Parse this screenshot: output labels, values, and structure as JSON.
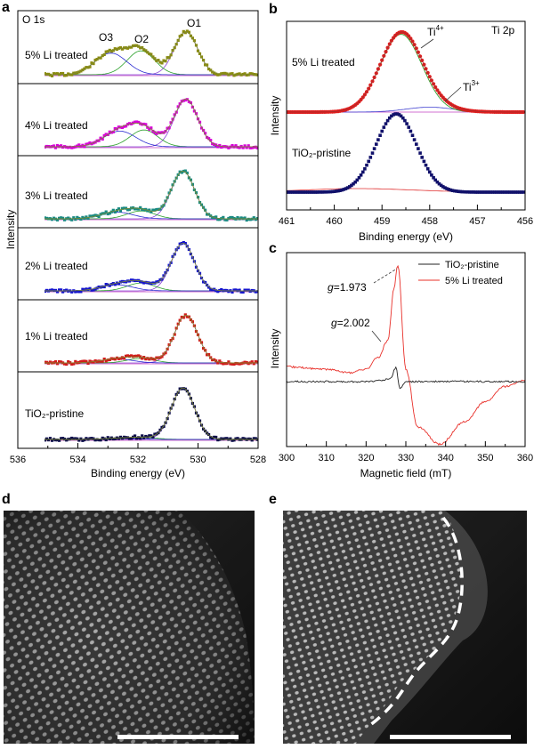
{
  "panels": {
    "a": {
      "letter": "a",
      "corner_label": "O 1s",
      "peak_labels": [
        "O3",
        "O2",
        "O1"
      ],
      "sample_labels": [
        "5% Li treated",
        "4% Li treated",
        "3% Li treated",
        "2% Li treated",
        "1% Li treated",
        "TiO₂-pristine"
      ],
      "xlabel": "Binding energy (eV)",
      "ylabel": "Intensity",
      "xticks": [
        "536",
        "534",
        "532",
        "530",
        "528"
      ]
    },
    "b": {
      "letter": "b",
      "corner_label": "Ti 2p",
      "peak_labels": [
        "Ti",
        "Ti"
      ],
      "peak_sup": [
        "4+",
        "3+"
      ],
      "sample_labels": [
        "5% Li treated",
        "TiO₂-pristine"
      ],
      "xlabel": "Binding energy (eV)",
      "ylabel": "Intensity",
      "xticks": [
        "461",
        "460",
        "459",
        "458",
        "457",
        "456"
      ]
    },
    "c": {
      "letter": "c",
      "legend": [
        "TiO₂-pristine",
        "5% Li treated"
      ],
      "g_label": "g",
      "g_values": [
        "=1.973",
        "=2.002"
      ],
      "xlabel": "Magnetic field (mT)",
      "ylabel": "Intensity",
      "xticks": [
        "300",
        "310",
        "320",
        "330",
        "340",
        "350",
        "360"
      ]
    },
    "d": {
      "letter": "d"
    },
    "e": {
      "letter": "e"
    }
  },
  "colors": {
    "s5": "#8a8a10",
    "s4": "#d800d8",
    "s3": "#1a8a82",
    "s2": "#1515cc",
    "s1": "#d21a1a",
    "s0": "#0a0a4a",
    "b5": "#e01e1e",
    "b0": "#10106a",
    "epr_red": "#e8302a",
    "epr_black": "#222222"
  },
  "chart_data": [
    {
      "id": "a",
      "type": "line",
      "title": "O 1s",
      "xlabel": "Binding energy (eV)",
      "ylabel": "Intensity",
      "xlim": [
        536,
        528
      ],
      "xticks": [
        536,
        534,
        532,
        530,
        528
      ],
      "series": [
        {
          "name": "5% Li treated",
          "components": {
            "O1": [
              530.4,
              0.75
            ],
            "O2": [
              531.9,
              0.42
            ],
            "O3": [
              532.9,
              0.38
            ]
          }
        },
        {
          "name": "4% Li treated",
          "components": {
            "O1": [
              530.4,
              0.85
            ],
            "O2": [
              531.8,
              0.3
            ],
            "O3": [
              532.6,
              0.28
            ]
          }
        },
        {
          "name": "3% Li treated",
          "components": {
            "O1": [
              530.5,
              0.85
            ],
            "O2": [
              531.9,
              0.14
            ],
            "O3": [
              532.7,
              0.12
            ]
          }
        },
        {
          "name": "2% Li treated",
          "components": {
            "O1": [
              530.5,
              0.85
            ],
            "O2": [
              531.9,
              0.14
            ],
            "O3": [
              532.7,
              0.11
            ]
          }
        },
        {
          "name": "1% Li treated",
          "components": {
            "O1": [
              530.4,
              0.85
            ],
            "O2": [
              531.9,
              0.08
            ],
            "O3": [
              532.7,
              0.07
            ]
          }
        },
        {
          "name": "TiO₂-pristine",
          "components": {
            "O1": [
              530.5,
              0.85
            ],
            "O2": [
              531.8,
              0.03
            ],
            "O3": [
              532.6,
              0.02
            ]
          }
        }
      ]
    },
    {
      "id": "b",
      "type": "line",
      "title": "Ti 2p",
      "xlabel": "Binding energy (eV)",
      "ylabel": "Intensity",
      "xlim": [
        461,
        456
      ],
      "xticks": [
        461,
        460,
        459,
        458,
        457,
        456
      ],
      "series": [
        {
          "name": "5% Li treated",
          "components": {
            "Ti4+": [
              458.6,
              0.95
            ],
            "Ti3+": [
              458.0,
              0.06
            ]
          }
        },
        {
          "name": "TiO₂-pristine",
          "components": {
            "Ti4+": [
              458.7,
              1.0
            ]
          }
        }
      ]
    },
    {
      "id": "c",
      "type": "line",
      "xlabel": "Magnetic field (mT)",
      "ylabel": "Intensity",
      "xlim": [
        300,
        360
      ],
      "xticks": [
        300,
        310,
        320,
        330,
        340,
        350,
        360
      ],
      "series": [
        {
          "name": "TiO₂-pristine",
          "x": [
            300,
            310,
            320,
            326,
            327.5,
            328.5,
            330,
            340,
            350,
            360
          ],
          "y": [
            0,
            0,
            0,
            0.02,
            0.12,
            -0.06,
            0,
            0,
            0,
            0
          ]
        },
        {
          "name": "5% Li treated",
          "x": [
            300,
            310,
            316,
            320,
            323,
            325.5,
            327,
            328,
            330,
            333,
            338.5,
            345,
            350,
            355,
            360
          ],
          "y": [
            0.12,
            0.1,
            0.07,
            0.1,
            0.2,
            0.35,
            0.8,
            1.0,
            0.1,
            -0.4,
            -0.55,
            -0.35,
            -0.18,
            -0.05,
            0.0
          ]
        }
      ],
      "annotations": [
        "g=1.973",
        "g=2.002"
      ]
    }
  ]
}
